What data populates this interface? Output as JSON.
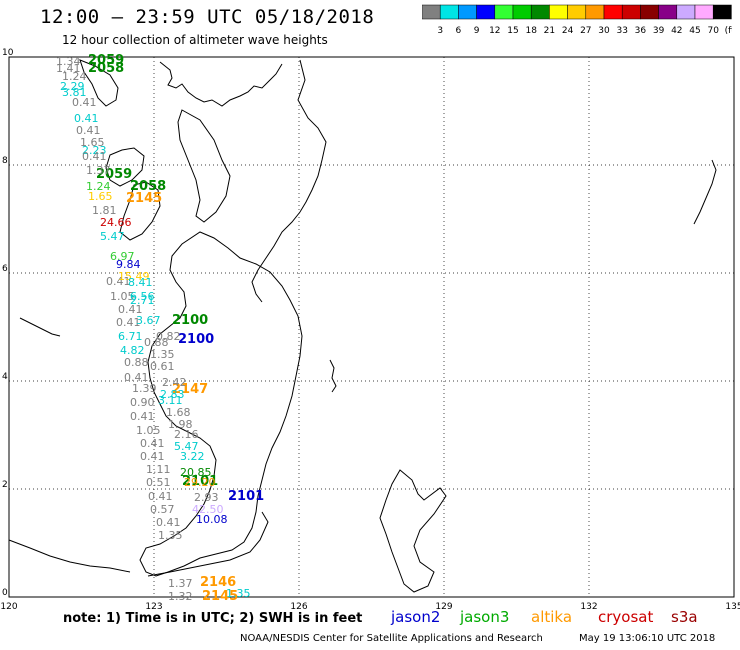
{
  "header": {
    "title": "12:00 – 23:59 UTC 05/18/2018",
    "subtitle": "12 hour collection of altimeter wave heights"
  },
  "colorbar": {
    "ticks": [
      "3",
      "6",
      "9",
      "12",
      "15",
      "18",
      "21",
      "24",
      "27",
      "30",
      "33",
      "36",
      "39",
      "42",
      "45",
      "70",
      "(ft)"
    ],
    "colors": [
      "#808080",
      "#00e5e5",
      "#0099ff",
      "#0000ff",
      "#33ff33",
      "#00cc00",
      "#008800",
      "#ffff00",
      "#ffcc00",
      "#ff9900",
      "#ff0000",
      "#cc0000",
      "#880000",
      "#880088",
      "#ccaaff",
      "#ffaaff",
      "#000000"
    ]
  },
  "axes": {
    "x_ticks": [
      "120",
      "123",
      "126",
      "129",
      "132",
      "135"
    ],
    "y_ticks": [
      "10",
      "8",
      "6",
      "4",
      "2",
      "0"
    ]
  },
  "passes": [
    {
      "text": "2059",
      "color": "#008800"
    },
    {
      "text": "2058",
      "color": "#008800"
    },
    {
      "text": "2059",
      "color": "#008800"
    },
    {
      "text": "2058",
      "color": "#008800"
    },
    {
      "text": "2145",
      "color": "#ff9900"
    },
    {
      "text": "2100",
      "color": "#008800"
    },
    {
      "text": "2100",
      "color": "#0000cc"
    },
    {
      "text": "2147",
      "color": "#ff9900"
    },
    {
      "text": "2101",
      "color": "#008800"
    },
    {
      "text": "2101",
      "color": "#0000cc"
    },
    {
      "text": "2146",
      "color": "#ff9900"
    },
    {
      "text": "2145",
      "color": "#ff9900"
    }
  ],
  "wave_labels": [
    {
      "text": "1.34",
      "color": "#808080"
    },
    {
      "text": "1.41",
      "color": "#808080"
    },
    {
      "text": "1.24",
      "color": "#808080"
    },
    {
      "text": "2.29",
      "color": "#00cccc"
    },
    {
      "text": "3.81",
      "color": "#00cccc"
    },
    {
      "text": "0.41",
      "color": "#808080"
    },
    {
      "text": "0.41",
      "color": "#00cccc"
    },
    {
      "text": "0.41",
      "color": "#808080"
    },
    {
      "text": "1.65",
      "color": "#808080"
    },
    {
      "text": "2.23",
      "color": "#00cccc"
    },
    {
      "text": "0.41",
      "color": "#808080"
    },
    {
      "text": "1.37",
      "color": "#808080"
    },
    {
      "text": "1.24",
      "color": "#33cc33"
    },
    {
      "text": "1.65",
      "color": "#ffcc00"
    },
    {
      "text": "1.81",
      "color": "#808080"
    },
    {
      "text": "24.66",
      "color": "#cc0000"
    },
    {
      "text": "5.47",
      "color": "#00cccc"
    },
    {
      "text": "6.97",
      "color": "#33cc33"
    },
    {
      "text": "9.84",
      "color": "#0000cc"
    },
    {
      "text": "0.41",
      "color": "#808080"
    },
    {
      "text": "15.49",
      "color": "#ffcc00"
    },
    {
      "text": "8.41",
      "color": "#00cccc"
    },
    {
      "text": "1.05",
      "color": "#808080"
    },
    {
      "text": "6.56",
      "color": "#00cccc"
    },
    {
      "text": "2.71",
      "color": "#00cccc"
    },
    {
      "text": "0.41",
      "color": "#808080"
    },
    {
      "text": "0.41",
      "color": "#808080"
    },
    {
      "text": "3.67",
      "color": "#00cccc"
    },
    {
      "text": "6.71",
      "color": "#00cccc"
    },
    {
      "text": "0.82",
      "color": "#808080"
    },
    {
      "text": "0.88",
      "color": "#808080"
    },
    {
      "text": "4.82",
      "color": "#00cccc"
    },
    {
      "text": "1.35",
      "color": "#808080"
    },
    {
      "text": "0.61",
      "color": "#808080"
    },
    {
      "text": "0.88",
      "color": "#808080"
    },
    {
      "text": "0.41",
      "color": "#808080"
    },
    {
      "text": "2.42",
      "color": "#808080"
    },
    {
      "text": "1.39",
      "color": "#808080"
    },
    {
      "text": "2.83",
      "color": "#00cccc"
    },
    {
      "text": "3.11",
      "color": "#00cccc"
    },
    {
      "text": "0.90",
      "color": "#808080"
    },
    {
      "text": "1.68",
      "color": "#808080"
    },
    {
      "text": "0.41",
      "color": "#808080"
    },
    {
      "text": "1.98",
      "color": "#808080"
    },
    {
      "text": "1.05",
      "color": "#808080"
    },
    {
      "text": "2.16",
      "color": "#808080"
    },
    {
      "text": "0.41",
      "color": "#808080"
    },
    {
      "text": "5.47",
      "color": "#00cccc"
    },
    {
      "text": "0.41",
      "color": "#808080"
    },
    {
      "text": "3.22",
      "color": "#00cccc"
    },
    {
      "text": "1.11",
      "color": "#808080"
    },
    {
      "text": "20.85",
      "color": "#008800"
    },
    {
      "text": "0.51",
      "color": "#808080"
    },
    {
      "text": "29.20",
      "color": "#ff9900"
    },
    {
      "text": "0.41",
      "color": "#808080"
    },
    {
      "text": "2.93",
      "color": "#808080"
    },
    {
      "text": "0.57",
      "color": "#808080"
    },
    {
      "text": "42.50",
      "color": "#ccaaff"
    },
    {
      "text": "0.41",
      "color": "#808080"
    },
    {
      "text": "10.08",
      "color": "#0000cc"
    },
    {
      "text": "1.35",
      "color": "#808080"
    },
    {
      "text": "1.37",
      "color": "#808080"
    },
    {
      "text": "1.32",
      "color": "#808080"
    },
    {
      "text": "1.35",
      "color": "#00cccc"
    }
  ],
  "footer": {
    "note": "note:  1) Time is in UTC;  2) SWH is in feet",
    "legend": [
      {
        "name": "jason2",
        "color": "#0000cc"
      },
      {
        "name": "jason3",
        "color": "#00aa00"
      },
      {
        "name": "altika",
        "color": "#ff9900"
      },
      {
        "name": "cryosat",
        "color": "#cc0000"
      },
      {
        "name": "s3a",
        "color": "#990000"
      }
    ],
    "credit": "NOAA/NESDIS Center for Satellite Applications and Research",
    "date": "May 19 13:06:10 UTC 2018"
  }
}
